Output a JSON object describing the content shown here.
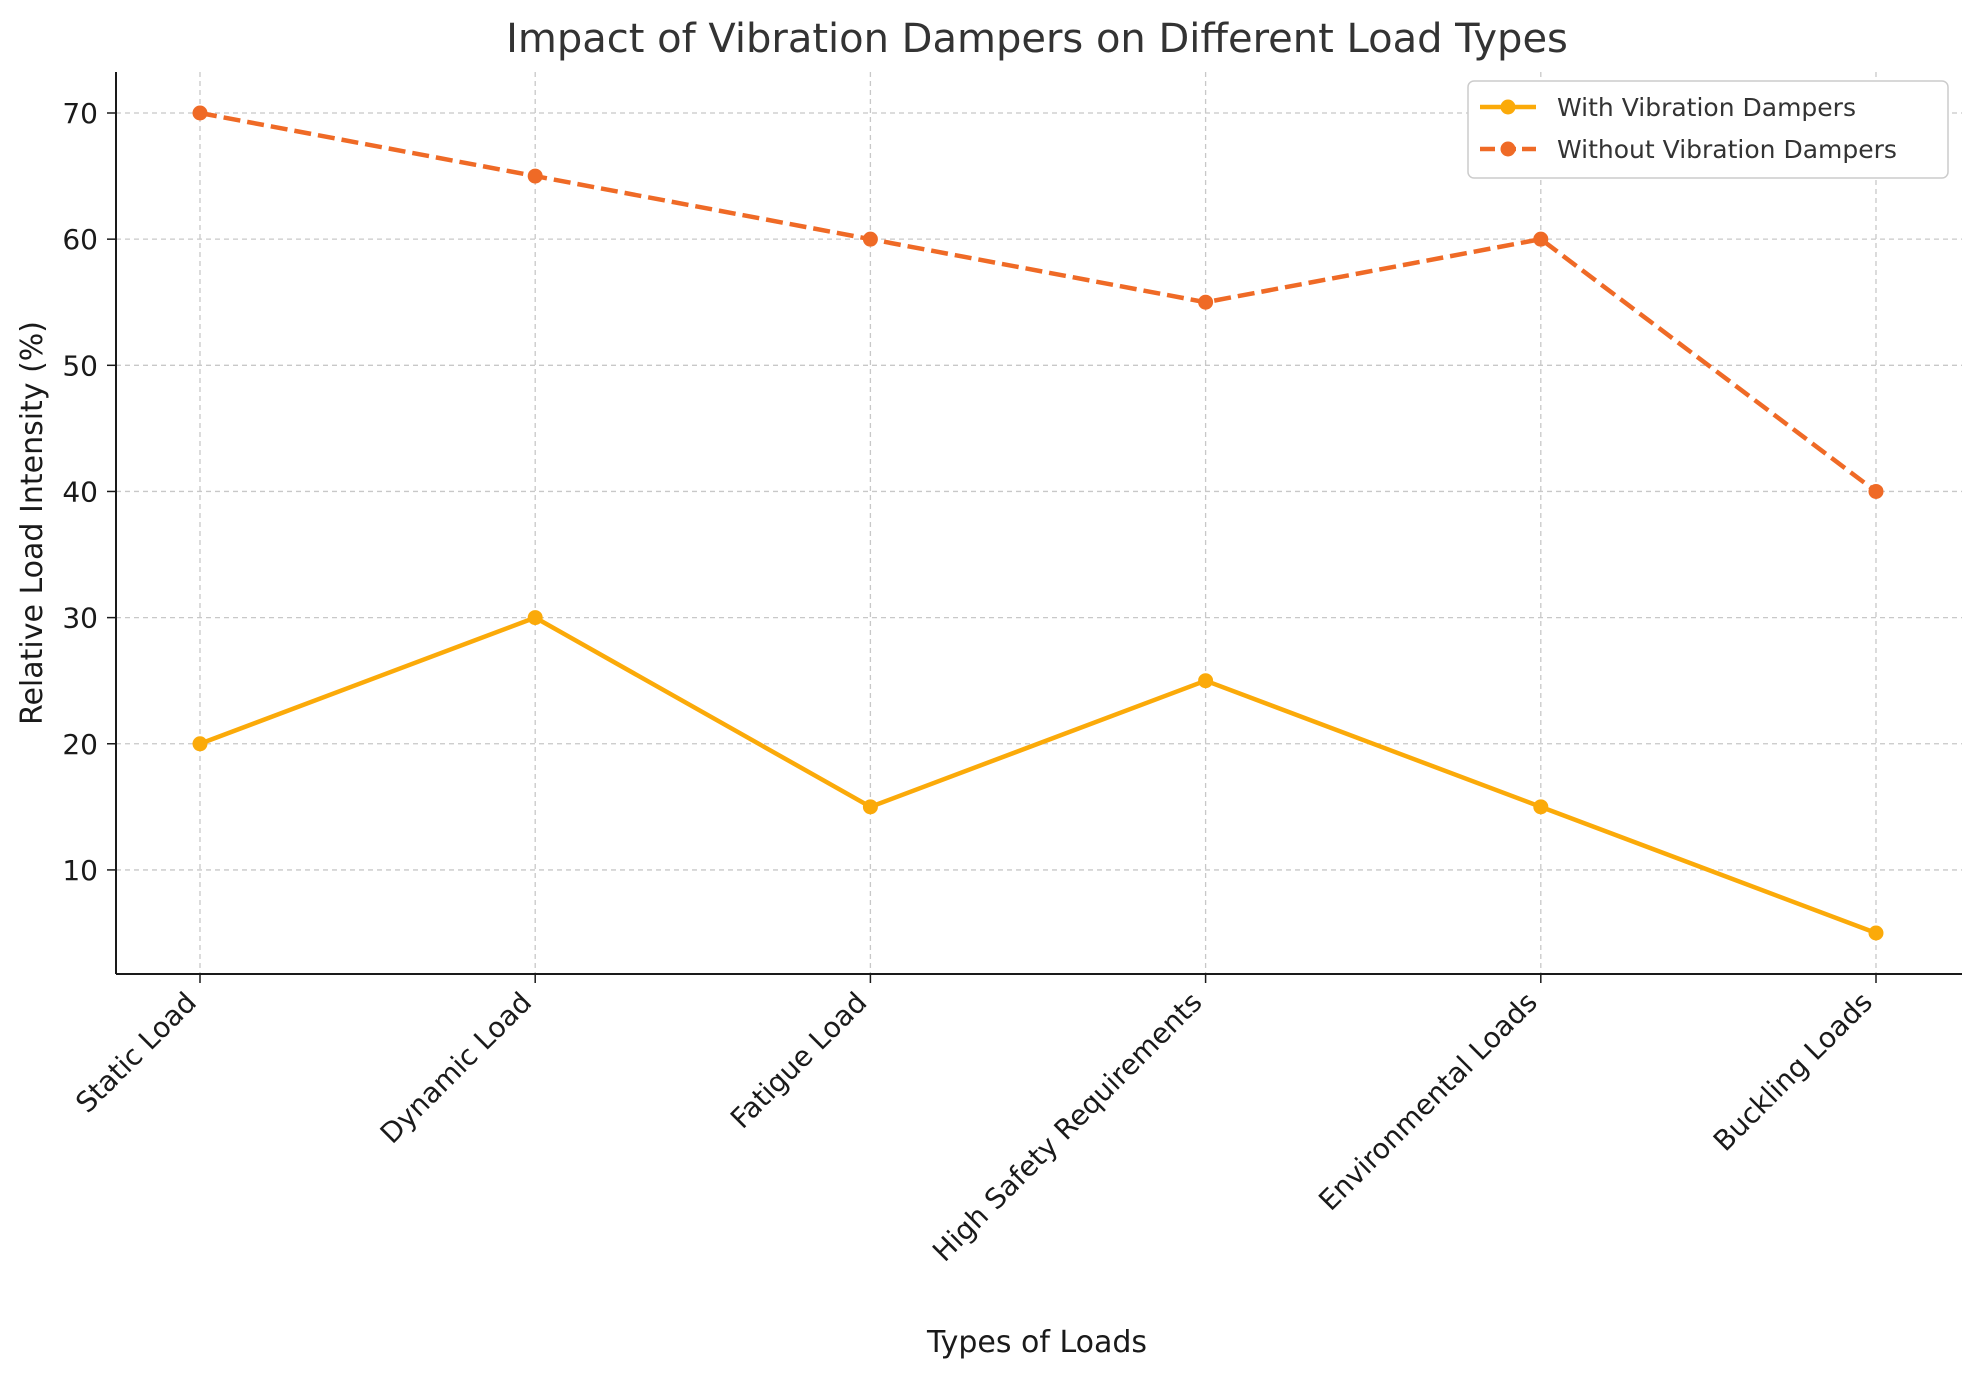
{
  "chart_data": {
    "type": "line",
    "title": "Impact of Vibration Dampers on Different Load Types",
    "xlabel": "Types of Loads",
    "ylabel": "Relative Load Intensity (%)",
    "categories": [
      "Static Load",
      "Dynamic Load",
      "Fatigue Load",
      "High Safety Requirements",
      "Environmental Loads",
      "Buckling Loads"
    ],
    "ylim": [
      1.75,
      73.25
    ],
    "yticks": [
      10,
      20,
      30,
      40,
      50,
      60,
      70
    ],
    "grid": true,
    "legend_position": "top-right",
    "series": [
      {
        "name": "With Vibration Dampers",
        "values": [
          20,
          30,
          15,
          25,
          15,
          5
        ],
        "color": "#FBAA09",
        "line_style": "solid"
      },
      {
        "name": "Without Vibration Dampers",
        "values": [
          70,
          65,
          60,
          55,
          60,
          40
        ],
        "color": "#EF6A26",
        "line_style": "dashed"
      }
    ]
  }
}
